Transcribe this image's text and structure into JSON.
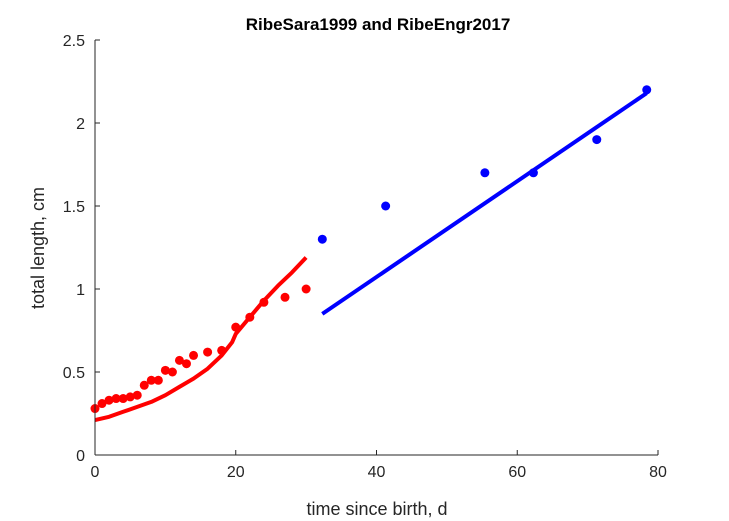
{
  "chart_data": {
    "type": "scatter",
    "title": "RibeSara1999 and RibeEngr2017",
    "xlabel": "time since birth, d",
    "ylabel": "total length, cm",
    "xlim": [
      0,
      80
    ],
    "ylim": [
      0,
      2.5
    ],
    "xticks": [
      0,
      20,
      40,
      60,
      80
    ],
    "yticks": [
      0,
      0.5,
      1,
      1.5,
      2,
      2.5
    ],
    "xtick_labels": [
      "0",
      "20",
      "40",
      "60",
      "80"
    ],
    "ytick_labels": [
      "0",
      "0.5",
      "1",
      "1.5",
      "2",
      "2.5"
    ],
    "grid": false,
    "box": false,
    "series": [
      {
        "color": "#ff0000",
        "points": [
          {
            "x": 0,
            "y": 0.28
          },
          {
            "x": 1,
            "y": 0.31
          },
          {
            "x": 2,
            "y": 0.33
          },
          {
            "x": 3,
            "y": 0.34
          },
          {
            "x": 4,
            "y": 0.34
          },
          {
            "x": 5,
            "y": 0.35
          },
          {
            "x": 6,
            "y": 0.36
          },
          {
            "x": 7,
            "y": 0.42
          },
          {
            "x": 8,
            "y": 0.45
          },
          {
            "x": 9,
            "y": 0.45
          },
          {
            "x": 10,
            "y": 0.51
          },
          {
            "x": 11,
            "y": 0.5
          },
          {
            "x": 12,
            "y": 0.57
          },
          {
            "x": 13,
            "y": 0.55
          },
          {
            "x": 14,
            "y": 0.6
          },
          {
            "x": 16,
            "y": 0.62
          },
          {
            "x": 18,
            "y": 0.63
          },
          {
            "x": 20,
            "y": 0.77
          },
          {
            "x": 22,
            "y": 0.83
          },
          {
            "x": 24,
            "y": 0.92
          },
          {
            "x": 27,
            "y": 0.95
          },
          {
            "x": 30,
            "y": 1.0
          }
        ],
        "line": [
          {
            "x": 0,
            "y": 0.21
          },
          {
            "x": 2,
            "y": 0.23
          },
          {
            "x": 4,
            "y": 0.26
          },
          {
            "x": 6,
            "y": 0.29
          },
          {
            "x": 8,
            "y": 0.32
          },
          {
            "x": 10,
            "y": 0.36
          },
          {
            "x": 12,
            "y": 0.41
          },
          {
            "x": 14,
            "y": 0.46
          },
          {
            "x": 16,
            "y": 0.52
          },
          {
            "x": 18,
            "y": 0.6
          },
          {
            "x": 19.5,
            "y": 0.68
          },
          {
            "x": 20,
            "y": 0.73
          },
          {
            "x": 22,
            "y": 0.83
          },
          {
            "x": 24,
            "y": 0.93
          },
          {
            "x": 26,
            "y": 1.02
          },
          {
            "x": 28,
            "y": 1.1
          },
          {
            "x": 30,
            "y": 1.19
          }
        ]
      },
      {
        "color": "#0000ff",
        "points": [
          {
            "x": 32.3,
            "y": 1.3
          },
          {
            "x": 41.3,
            "y": 1.5
          },
          {
            "x": 55.4,
            "y": 1.7
          },
          {
            "x": 62.3,
            "y": 1.7
          },
          {
            "x": 71.3,
            "y": 1.9
          },
          {
            "x": 78.4,
            "y": 2.2
          }
        ],
        "line": [
          {
            "x": 32.3,
            "y": 0.85
          },
          {
            "x": 78.4,
            "y": 2.18
          }
        ]
      }
    ]
  }
}
